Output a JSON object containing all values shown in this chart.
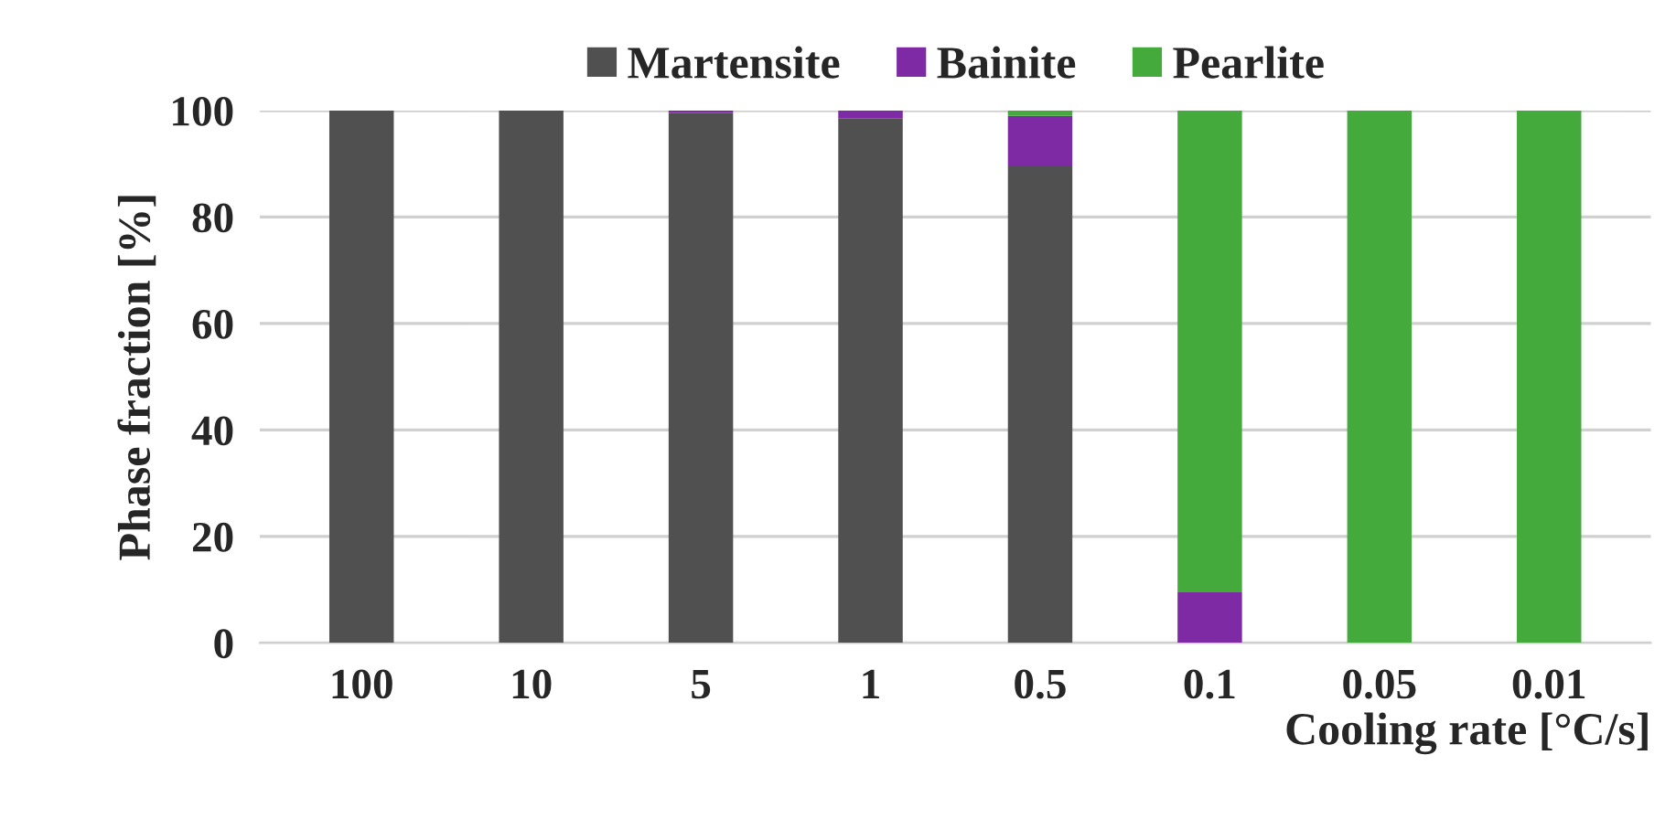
{
  "chart_data": {
    "type": "bar",
    "stacked": true,
    "categories": [
      "100",
      "10",
      "5",
      "1",
      "0.5",
      "0.1",
      "0.05",
      "0.01"
    ],
    "series": [
      {
        "name": "Martensite",
        "color": "#505050",
        "values": [
          100,
          100,
          99.5,
          98.5,
          89.5,
          0,
          0,
          0
        ]
      },
      {
        "name": "Bainite",
        "color": "#7f2aa5",
        "values": [
          0,
          0,
          0.5,
          1.5,
          9.5,
          9.5,
          0,
          0
        ]
      },
      {
        "name": "Pearlite",
        "color": "#43aa3b",
        "values": [
          0,
          0,
          0,
          0,
          1,
          90.5,
          100,
          100
        ]
      }
    ],
    "ylabel": "Phase fraction [%]",
    "xlabel": "Cooling rate [°C/s]",
    "ylim": [
      0,
      100
    ],
    "yticks": [
      0,
      20,
      40,
      60,
      80,
      100
    ],
    "grid": "y",
    "legend": "top"
  }
}
